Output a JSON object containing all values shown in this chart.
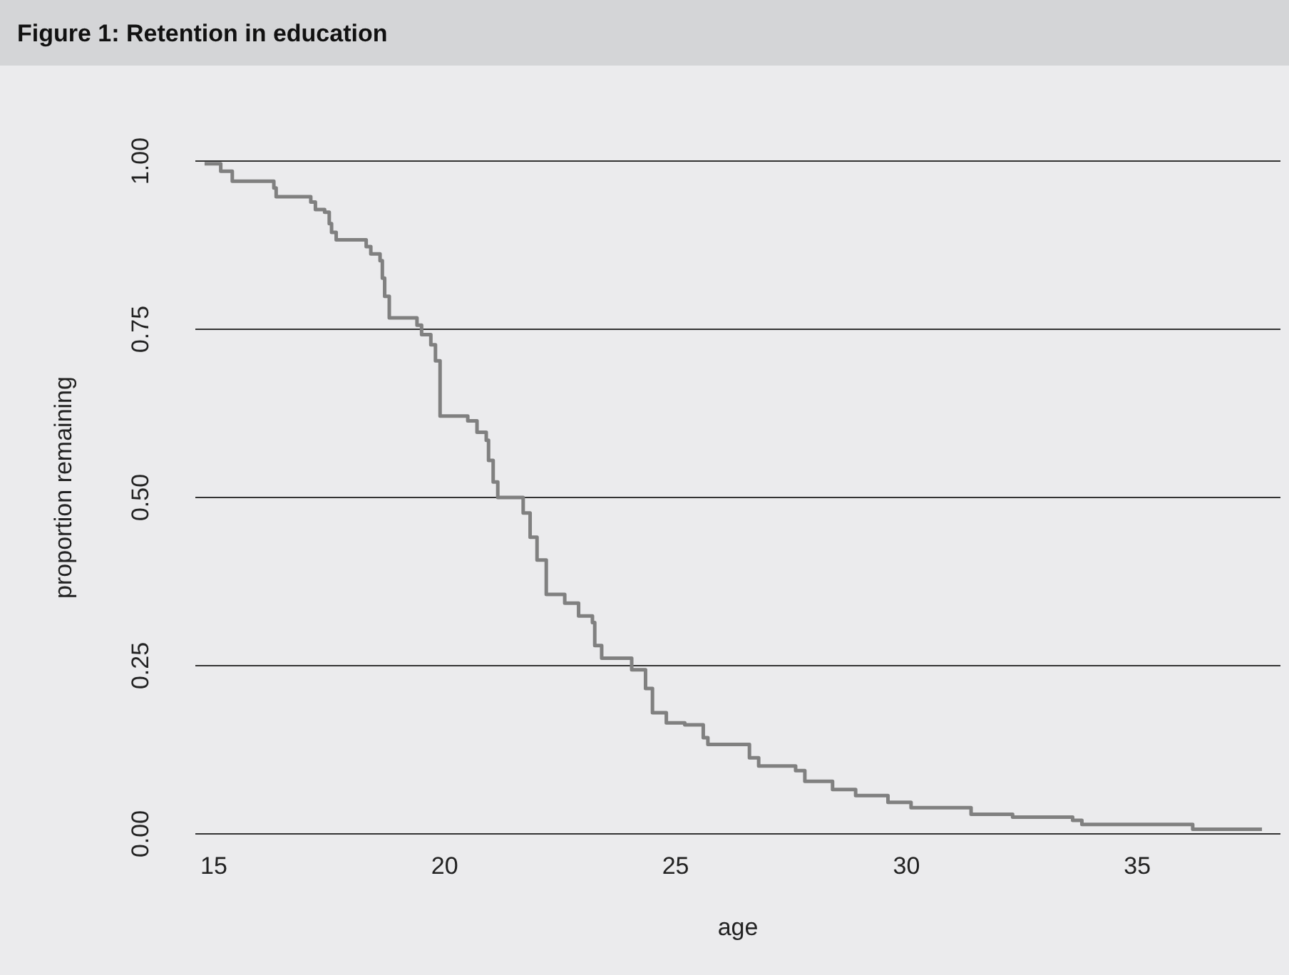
{
  "chart_data": {
    "type": "step",
    "title": "Figure 1: Retention in education",
    "xlabel": "age",
    "ylabel": "proportion remaining",
    "xlim": [
      14.6,
      38.1
    ],
    "xticks": [
      15,
      20,
      25,
      30,
      35
    ],
    "ylim": [
      0,
      1
    ],
    "yticks": [
      {
        "value": 0,
        "label": "0.00"
      },
      {
        "value": 0.25,
        "label": "0.25"
      },
      {
        "value": 0.5,
        "label": "0.50"
      },
      {
        "value": 0.75,
        "label": "0.75"
      },
      {
        "value": 1,
        "label": "1.00"
      }
    ],
    "grid": "y",
    "series": [
      {
        "color": "#808080",
        "x": [
          14.8,
          15.15,
          15.4,
          16.3,
          16.35,
          17.1,
          17.2,
          17.4,
          17.5,
          17.55,
          17.65,
          18.3,
          18.4,
          18.6,
          18.65,
          18.7,
          18.8,
          19.4,
          19.5,
          19.7,
          19.8,
          19.9,
          20.5,
          20.7,
          20.9,
          20.95,
          21.05,
          21.15,
          21.7,
          21.85,
          22.0,
          22.2,
          22.6,
          22.9,
          23.2,
          23.25,
          23.4,
          24.05,
          24.35,
          24.5,
          24.8,
          25.2,
          25.6,
          25.7,
          26.6,
          26.8,
          27.6,
          27.8,
          28.4,
          28.9,
          29.6,
          30.1,
          31.4,
          32.3,
          33.6,
          33.8,
          36.2,
          37.7
        ],
        "values": [
          0.996,
          0.985,
          0.97,
          0.96,
          0.947,
          0.939,
          0.928,
          0.924,
          0.907,
          0.894,
          0.883,
          0.873,
          0.862,
          0.852,
          0.826,
          0.799,
          0.767,
          0.756,
          0.742,
          0.727,
          0.703,
          0.621,
          0.614,
          0.597,
          0.585,
          0.555,
          0.523,
          0.5,
          0.477,
          0.441,
          0.407,
          0.356,
          0.343,
          0.324,
          0.314,
          0.28,
          0.261,
          0.244,
          0.216,
          0.18,
          0.165,
          0.162,
          0.143,
          0.133,
          0.113,
          0.101,
          0.094,
          0.078,
          0.066,
          0.057,
          0.047,
          0.039,
          0.029,
          0.025,
          0.02,
          0.014,
          0.007,
          0.007
        ]
      }
    ]
  }
}
